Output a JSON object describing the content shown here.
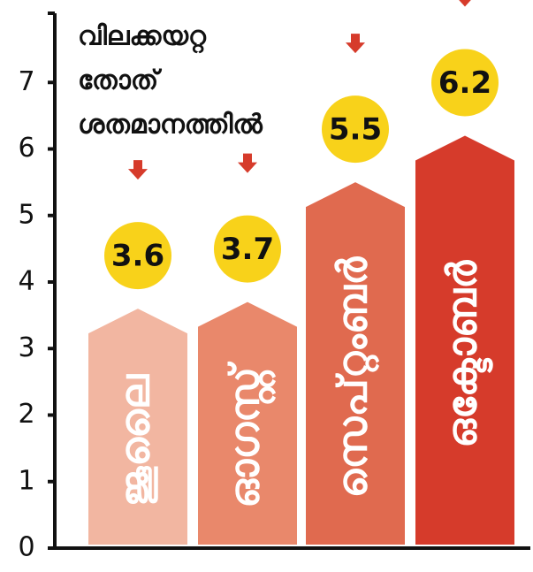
{
  "chart_data": {
    "type": "arrow-bar",
    "title_lines": [
      "വിലക്കയറ്റ",
      "തോത്",
      "ശതമാനത്തിൽ"
    ],
    "categories": [
      "ജൂലൈ",
      "ഓഗസ്റ്റ്",
      "സെപ്റ്റംബർ",
      "ഒക്ടോബർ"
    ],
    "values": [
      3.6,
      3.7,
      5.5,
      6.2
    ],
    "colors": [
      "#f2b6a1",
      "#e9886b",
      "#e06a4f",
      "#d63b2b"
    ],
    "label_color": "#f8d21a",
    "ylim": [
      0,
      8
    ],
    "yticks": [
      0,
      1,
      2,
      3,
      4,
      5,
      6,
      7
    ]
  }
}
